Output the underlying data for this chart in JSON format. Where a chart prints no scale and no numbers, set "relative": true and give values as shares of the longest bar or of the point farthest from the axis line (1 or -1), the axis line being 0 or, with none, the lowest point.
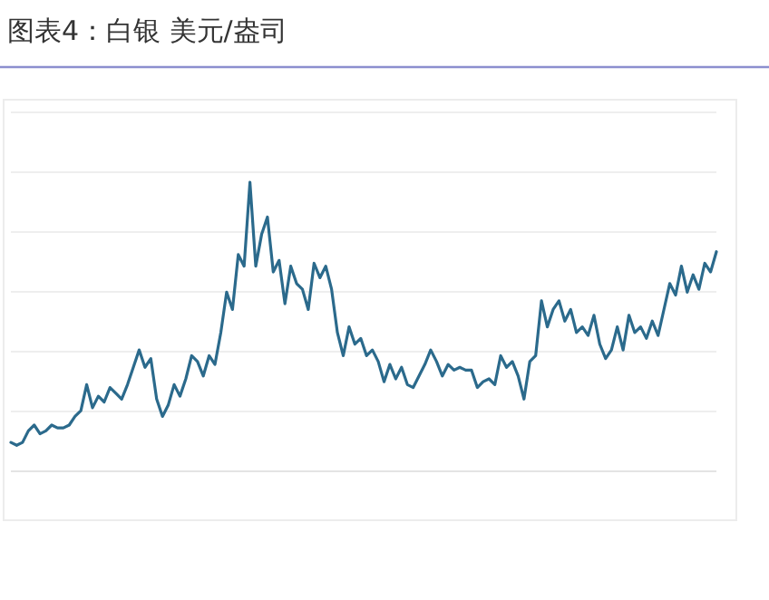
{
  "chart_data": {
    "type": "line",
    "title": "图表4：白银 美元/盎司",
    "relative": true,
    "grid": "y",
    "color": "#2b6a8c",
    "categories": [
      null,
      null,
      null,
      null,
      null,
      null,
      null,
      null,
      null,
      null,
      null,
      null,
      null,
      null,
      null,
      null,
      null,
      null,
      null,
      null,
      null,
      null,
      null,
      null,
      null,
      null,
      null,
      null,
      null,
      null,
      null,
      null,
      null,
      null,
      null,
      null,
      null,
      null,
      null,
      null,
      null,
      null,
      null,
      null,
      null,
      null,
      null,
      null,
      null,
      null,
      null,
      null,
      null,
      null,
      null,
      null,
      null,
      null,
      null,
      null,
      null,
      null,
      null,
      null,
      null,
      null,
      null,
      null,
      null,
      null,
      null,
      null,
      null,
      null,
      null,
      null,
      null,
      null,
      null,
      null,
      null,
      null,
      null,
      null,
      null,
      null,
      null,
      null,
      null,
      null,
      null,
      null,
      null,
      null,
      null,
      null,
      null,
      null,
      null,
      null,
      null,
      null,
      null,
      null,
      null,
      null,
      null,
      null,
      null,
      null,
      null,
      null,
      null,
      null,
      null,
      null,
      null,
      null,
      null,
      null,
      null,
      null
    ],
    "values": [
      0.1,
      0.09,
      0.1,
      0.14,
      0.16,
      0.13,
      0.14,
      0.16,
      0.15,
      0.15,
      0.16,
      0.19,
      0.21,
      0.3,
      0.22,
      0.26,
      0.24,
      0.29,
      0.27,
      0.25,
      0.3,
      0.36,
      0.42,
      0.36,
      0.39,
      0.25,
      0.19,
      0.23,
      0.3,
      0.26,
      0.32,
      0.4,
      0.38,
      0.33,
      0.4,
      0.37,
      0.48,
      0.62,
      0.56,
      0.75,
      0.71,
      1.0,
      0.71,
      0.82,
      0.88,
      0.69,
      0.73,
      0.58,
      0.71,
      0.65,
      0.63,
      0.56,
      0.72,
      0.67,
      0.71,
      0.63,
      0.48,
      0.4,
      0.5,
      0.44,
      0.46,
      0.4,
      0.42,
      0.38,
      0.31,
      0.37,
      0.32,
      0.36,
      0.3,
      0.29,
      0.33,
      0.37,
      0.42,
      0.38,
      0.33,
      0.37,
      0.35,
      0.36,
      0.35,
      0.35,
      0.29,
      0.31,
      0.32,
      0.3,
      0.4,
      0.36,
      0.38,
      0.33,
      0.25,
      0.38,
      0.4,
      0.59,
      0.5,
      0.56,
      0.59,
      0.52,
      0.56,
      0.48,
      0.5,
      0.47,
      0.54,
      0.44,
      0.39,
      0.42,
      0.5,
      0.42,
      0.54,
      0.48,
      0.5,
      0.46,
      0.52,
      0.47,
      0.56,
      0.65,
      0.61,
      0.71,
      0.62,
      0.68,
      0.63,
      0.72,
      0.69,
      0.76
    ]
  }
}
